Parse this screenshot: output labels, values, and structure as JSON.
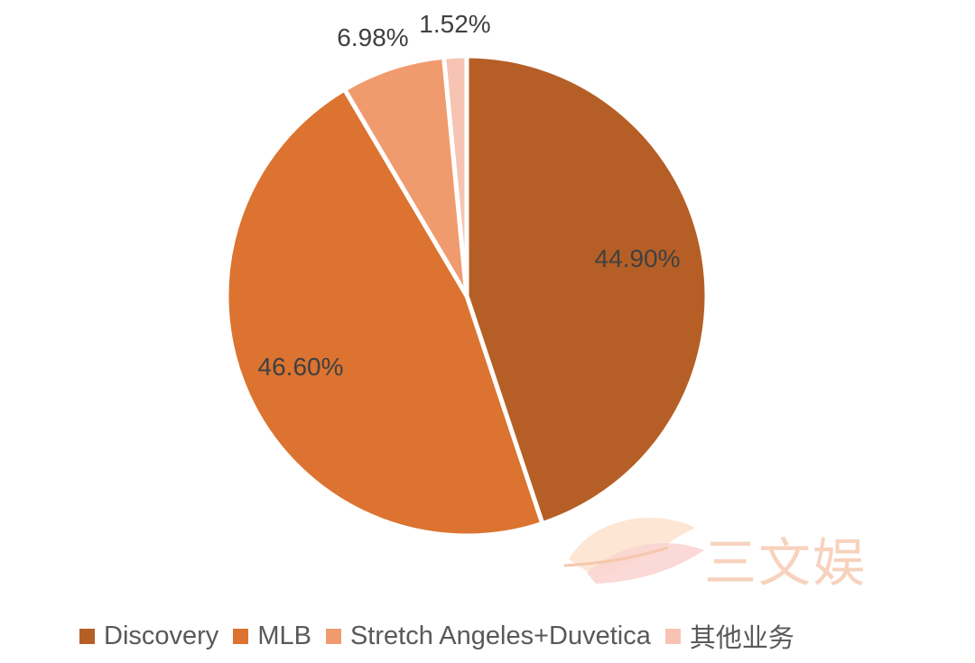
{
  "chart_data": {
    "type": "pie",
    "title": "",
    "slices": [
      {
        "name": "Discovery",
        "value": 44.9,
        "label": "44.90%",
        "color": "#b55f26"
      },
      {
        "name": "MLB",
        "value": 46.6,
        "label": "46.60%",
        "color": "#dc7330"
      },
      {
        "name": "Stretch Angeles+Duvetica",
        "value": 6.98,
        "label": "6.98%",
        "color": "#f09b6e"
      },
      {
        "name": "其他业务",
        "value": 1.52,
        "label": "1.52%",
        "color": "#f7c4b3"
      }
    ],
    "legend_position": "bottom"
  },
  "watermark": {
    "text": "三文娱"
  }
}
